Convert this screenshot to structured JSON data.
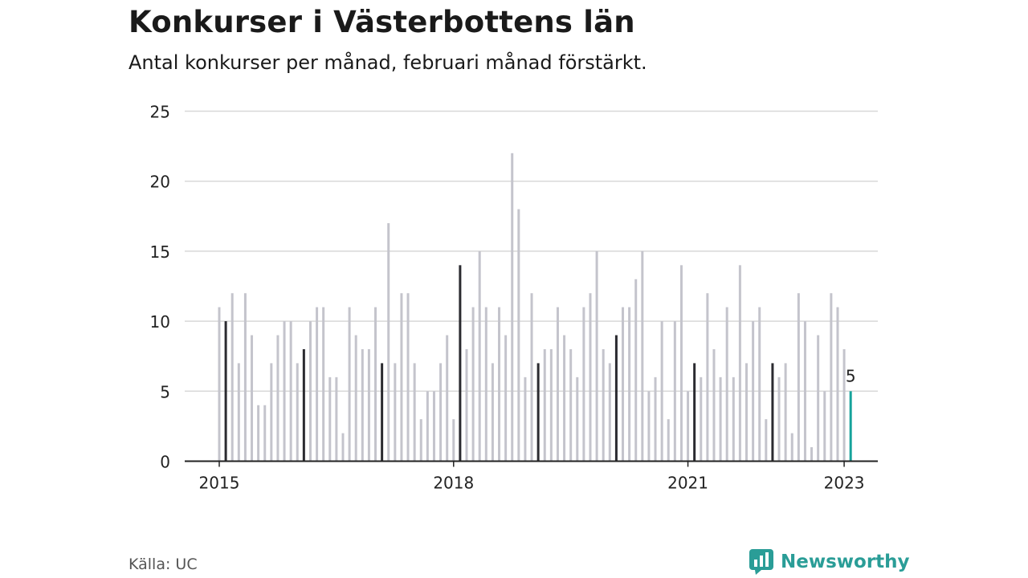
{
  "title": "Konkurser i Västerbottens län",
  "subtitle": "Antal konkurser per månad, februari månad förstärkt.",
  "source": "Källa: UC",
  "brand": "Newsworthy",
  "colors": {
    "bar": "#c4c4cc",
    "highlight": "#2b2b30",
    "latest": "#16a39b",
    "grid": "#d8d8d8",
    "axis": "#222222",
    "brand": "#2a9d97"
  },
  "chart_data": {
    "type": "bar",
    "ylim": [
      0,
      25
    ],
    "yticks": [
      0,
      5,
      10,
      15,
      20,
      25
    ],
    "grid": true,
    "start": "2015-01",
    "xtick_labels": [
      "2015",
      "2018",
      "2021",
      "2023"
    ],
    "xtick_years": [
      2015,
      2018,
      2021,
      2023
    ],
    "emphasized_month": "februari",
    "latest_label": "5",
    "values": [
      11,
      10,
      12,
      7,
      12,
      9,
      4,
      4,
      7,
      9,
      10,
      10,
      7,
      8,
      10,
      11,
      11,
      6,
      6,
      2,
      11,
      9,
      8,
      8,
      11,
      7,
      17,
      7,
      12,
      12,
      7,
      3,
      5,
      5,
      7,
      9,
      3,
      14,
      8,
      11,
      15,
      11,
      7,
      11,
      9,
      22,
      18,
      6,
      12,
      7,
      8,
      8,
      11,
      9,
      8,
      6,
      11,
      12,
      15,
      8,
      7,
      9,
      11,
      11,
      13,
      15,
      5,
      6,
      10,
      3,
      10,
      14,
      5,
      7,
      6,
      12,
      8,
      6,
      11,
      6,
      14,
      7,
      10,
      11,
      3,
      7,
      6,
      7,
      2,
      12,
      10,
      1,
      9,
      5,
      12,
      11,
      8,
      5
    ]
  }
}
